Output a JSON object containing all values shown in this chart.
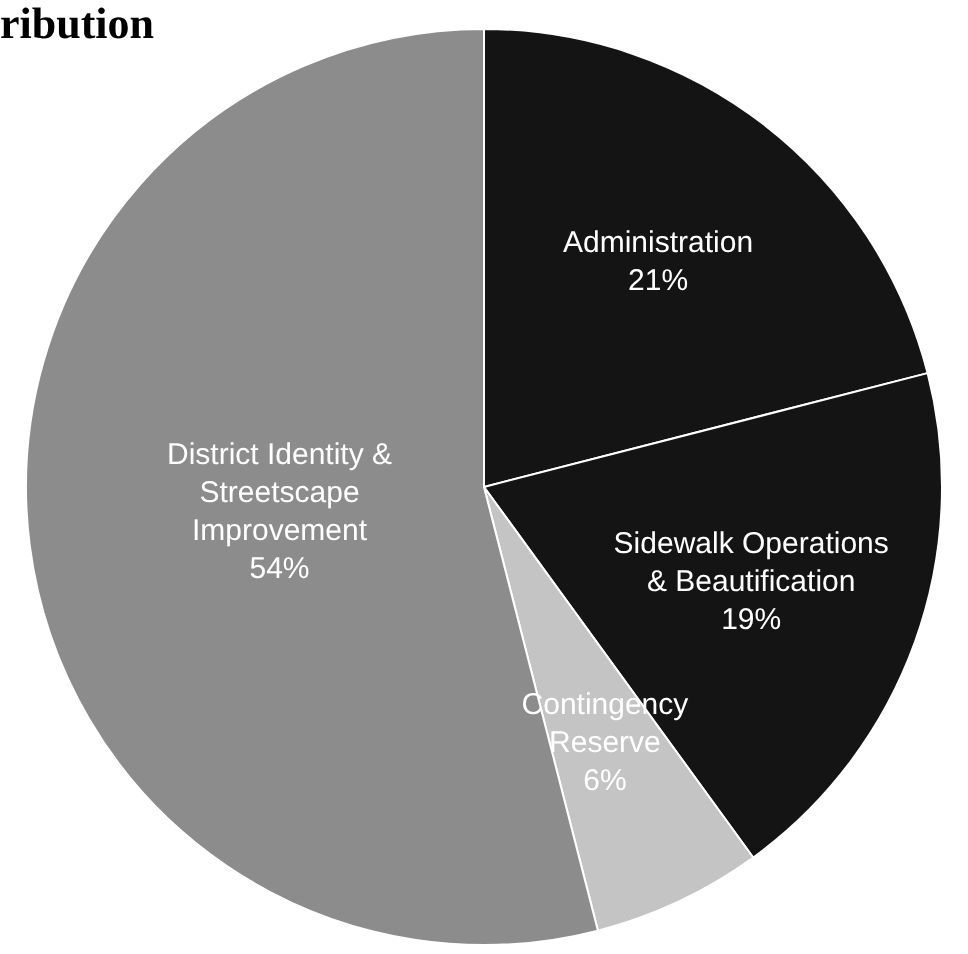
{
  "chart_data": {
    "type": "pie",
    "title": "ribution",
    "categories": [
      "Administration",
      "Sidewalk Operations & Beautification",
      "Contingency Reserve",
      "District Identity & Streetscape Improvement"
    ],
    "values": [
      21,
      19,
      6,
      54
    ],
    "value_labels": [
      "21%",
      "19%",
      "6%",
      "54%"
    ],
    "colors": [
      "#141414",
      "#141414",
      "#c4c4c4",
      "#8c8c8c"
    ]
  }
}
